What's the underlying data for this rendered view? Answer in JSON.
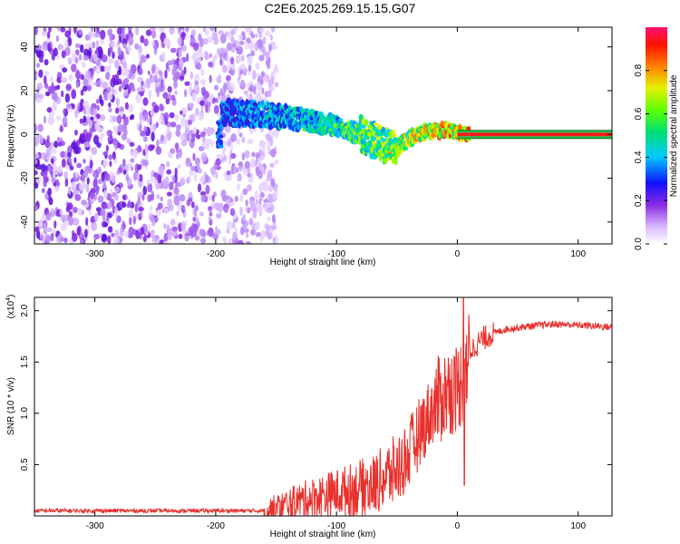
{
  "title": "C2E6.2025.269.15.15.G07",
  "chart_data": [
    {
      "type": "heatmap",
      "name": "spectrogram",
      "xlabel": "Height of straight line (km)",
      "ylabel": "Frequency (Hz)",
      "xlim": [
        -350,
        128
      ],
      "ylim": [
        -50,
        49
      ],
      "xticks": [
        -300,
        -200,
        -100,
        0,
        100
      ],
      "yticks": [
        -40,
        -20,
        0,
        20,
        40
      ],
      "noise_region_x": [
        -350,
        -157
      ],
      "signal_ridge": [
        {
          "x": -195,
          "y": 10
        },
        {
          "x": -160,
          "y": 9
        },
        {
          "x": -130,
          "y": 7
        },
        {
          "x": -100,
          "y": 4
        },
        {
          "x": -80,
          "y": 0
        },
        {
          "x": -60,
          "y": -5
        },
        {
          "x": -50,
          "y": -6
        },
        {
          "x": -40,
          "y": -2
        },
        {
          "x": -30,
          "y": 1
        },
        {
          "x": -10,
          "y": 2
        },
        {
          "x": 10,
          "y": 0
        },
        {
          "x": 128,
          "y": 0
        }
      ],
      "colorbar": {
        "label": "Normalized spectral amplitude",
        "range": [
          0,
          1
        ],
        "ticks": [
          "0.0",
          "0.2",
          "0.4",
          "0.6",
          "0.8"
        ]
      }
    },
    {
      "type": "line",
      "name": "snr",
      "xlabel": "Height of straight line (km)",
      "ylabel": "SNR (10 * v/v)",
      "multiplier": "(x10",
      "multiplier_exp": "4",
      "multiplier_close": ")",
      "xlim": [
        -350,
        128
      ],
      "ylim": [
        0,
        2.13
      ],
      "xticks": [
        -300,
        -200,
        -100,
        0,
        100
      ],
      "yticks": [
        0.5,
        1.0,
        1.5,
        2.0
      ],
      "ytick_labels": [
        "0.5",
        "1.0",
        "1.5",
        "2.0"
      ],
      "color": "#e8302c",
      "series": [
        {
          "name": "SNR",
          "x": [
            -350,
            -160,
            -150,
            -130,
            -110,
            -90,
            -70,
            -50,
            -40,
            -30,
            -20,
            -10,
            0,
            5,
            10,
            20,
            30,
            40,
            60,
            80,
            100,
            115,
            128
          ],
          "y": [
            0.05,
            0.05,
            0.07,
            0.15,
            0.2,
            0.25,
            0.3,
            0.45,
            0.6,
            0.85,
            1.05,
            1.2,
            1.25,
            1.35,
            1.6,
            1.72,
            1.78,
            1.82,
            1.85,
            1.87,
            1.86,
            1.85,
            1.84
          ]
        }
      ]
    }
  ]
}
